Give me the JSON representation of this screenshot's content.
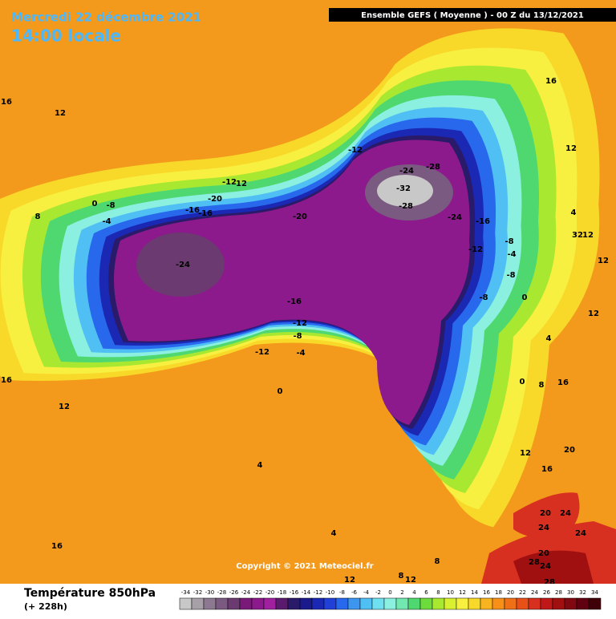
{
  "header": {
    "date": "Mercredi 22 décembre 2021",
    "time": "14:00 locale",
    "run": "Ensemble GEFS  ( Moyenne )  -  00 Z du 13/12/2021"
  },
  "copyright": "Copyright © 2021 Meteociel.fr",
  "footer": {
    "title": "Température 850hPa",
    "lead": "(+ 228h)"
  },
  "scale": {
    "values": [
      -34,
      -32,
      -30,
      -28,
      -26,
      -24,
      -22,
      -20,
      -18,
      -16,
      -14,
      -12,
      -10,
      -8,
      -6,
      -4,
      -2,
      0,
      2,
      4,
      6,
      8,
      10,
      12,
      14,
      16,
      18,
      20,
      22,
      24,
      26,
      28,
      30,
      32,
      34
    ],
    "colors": [
      "#c8c8c8",
      "#a8a0a8",
      "#8c7890",
      "#7a5a80",
      "#6a3a70",
      "#7a1a78",
      "#8c1a8c",
      "#a020a0",
      "#5a1a6e",
      "#2a1a6a",
      "#1a1a8c",
      "#1a28b4",
      "#2040d8",
      "#2868ec",
      "#3c96f0",
      "#50c0f4",
      "#6ee0f0",
      "#8cf0e0",
      "#70e8b0",
      "#50d870",
      "#6cdc3c",
      "#a8e830",
      "#d8f030",
      "#f8f040",
      "#f8d828",
      "#f8b420",
      "#f89018",
      "#f07018",
      "#e85018",
      "#d83020",
      "#c01818",
      "#a01010",
      "#800810",
      "#600010",
      "#400008"
    ]
  },
  "map": {
    "contour_labels": [
      16,
      12,
      16,
      12,
      8,
      0,
      -8,
      -4,
      -12,
      12,
      -20,
      -16,
      -16,
      -20,
      -24,
      -12,
      -24,
      -28,
      -32,
      -28,
      -24,
      -16,
      -12,
      -8,
      -4,
      -8,
      -8,
      0,
      4,
      32,
      12,
      12,
      12,
      -16,
      -12,
      -8,
      -4,
      -12,
      0,
      4,
      16,
      12,
      4,
      8,
      16,
      12,
      8,
      12,
      12,
      16,
      20,
      20,
      24,
      24,
      24,
      20,
      28,
      24,
      28,
      8,
      0,
      4,
      16
    ]
  }
}
